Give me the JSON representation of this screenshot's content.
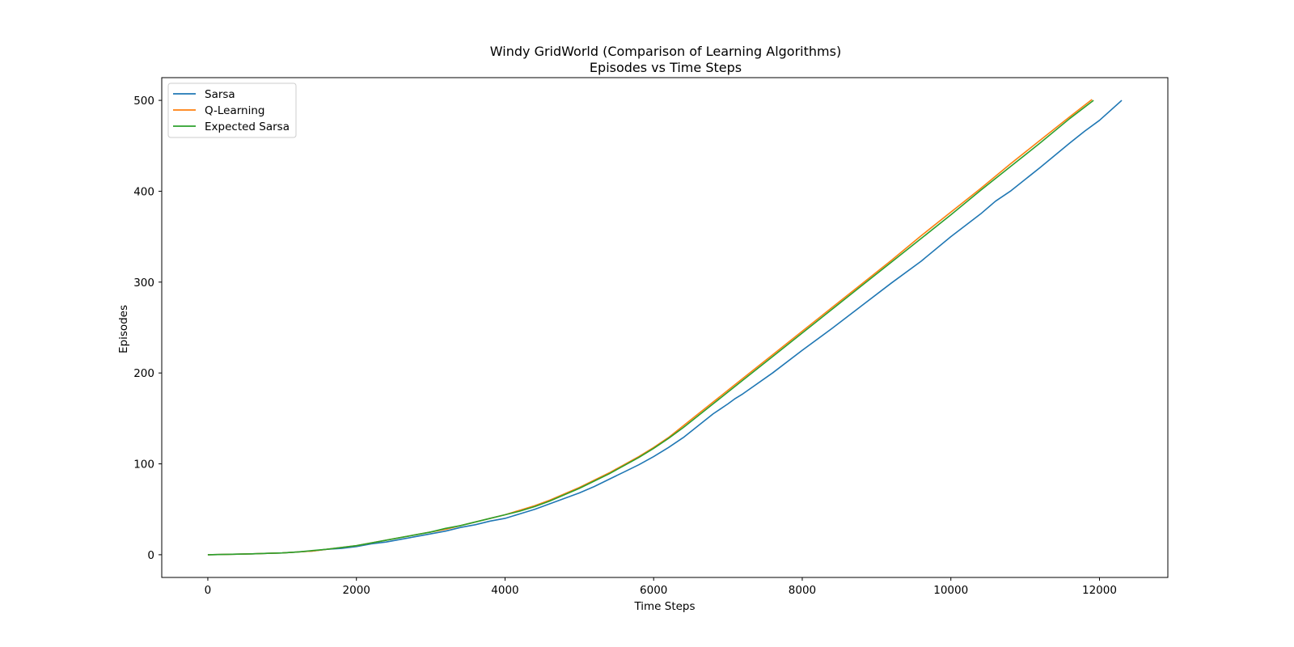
{
  "chart_data": {
    "type": "line",
    "title": "Windy GridWorld (Comparison of Learning Algorithms)",
    "subtitle": "Episodes vs Time Steps",
    "xlabel": "Time Steps",
    "ylabel": "Episodes",
    "xlim": [
      -620,
      12920
    ],
    "ylim": [
      -25,
      525
    ],
    "xticks": [
      0,
      2000,
      4000,
      6000,
      8000,
      10000,
      12000
    ],
    "yticks": [
      0,
      100,
      200,
      300,
      400,
      500
    ],
    "grid": false,
    "legend_position": "top-left",
    "series": [
      {
        "name": "Sarsa",
        "color": "#1f77b4",
        "x": [
          0,
          200,
          400,
          600,
          800,
          1000,
          1200,
          1400,
          1600,
          1800,
          2000,
          2200,
          2400,
          2600,
          2800,
          3000,
          3200,
          3400,
          3600,
          3800,
          4000,
          4200,
          4400,
          4600,
          4800,
          5000,
          5200,
          5400,
          5600,
          5800,
          6000,
          6200,
          6400,
          6600,
          6800,
          7000,
          7100,
          7200,
          7600,
          8000,
          8400,
          8800,
          9200,
          9600,
          10000,
          10400,
          10600,
          10800,
          11200,
          11600,
          11800,
          12000,
          12300
        ],
        "y": [
          0,
          0.3,
          0.6,
          1,
          1.5,
          2,
          3,
          4,
          6,
          7,
          9,
          12,
          14,
          17,
          20,
          23,
          26,
          30,
          33,
          37,
          40,
          45,
          50,
          56,
          62,
          68,
          75,
          83,
          91,
          99,
          108,
          118,
          129,
          142,
          155,
          166,
          172,
          177,
          200,
          225,
          249,
          274,
          299,
          323,
          350,
          375,
          389,
          400,
          426,
          453,
          466,
          478,
          500
        ]
      },
      {
        "name": "Q-Learning",
        "color": "#ff7f0e",
        "x": [
          0,
          200,
          400,
          600,
          800,
          1000,
          1200,
          1400,
          1600,
          1800,
          2000,
          2200,
          2400,
          2600,
          2800,
          3000,
          3200,
          3400,
          3600,
          3800,
          4000,
          4200,
          4400,
          4600,
          4800,
          5000,
          5200,
          5400,
          5600,
          5800,
          6000,
          6200,
          6400,
          6600,
          6800,
          7000,
          7200,
          7600,
          8000,
          8400,
          8800,
          9200,
          9600,
          10000,
          10400,
          10800,
          11200,
          11600,
          11900
        ],
        "y": [
          0,
          0.3,
          0.6,
          1,
          1.5,
          2,
          3,
          4,
          6,
          8,
          10,
          13,
          16,
          19,
          22,
          25,
          28,
          32,
          36,
          40,
          44,
          49,
          54,
          60,
          67,
          74,
          82,
          90,
          99,
          108,
          118,
          129,
          142,
          155,
          168,
          181,
          194,
          220,
          246,
          272,
          298,
          324,
          351,
          377,
          403,
          430,
          456,
          482,
          501
        ]
      },
      {
        "name": "Expected Sarsa",
        "color": "#2ca02c",
        "x": [
          0,
          200,
          400,
          600,
          800,
          1000,
          1200,
          1400,
          1600,
          1800,
          2000,
          2200,
          2400,
          2600,
          2800,
          3000,
          3200,
          3400,
          3600,
          3800,
          4000,
          4200,
          4400,
          4600,
          4800,
          5000,
          5200,
          5400,
          5600,
          5800,
          6000,
          6200,
          6400,
          6600,
          6800,
          7000,
          7200,
          7600,
          8000,
          8400,
          8800,
          9200,
          9600,
          10000,
          10400,
          10800,
          11200,
          11600,
          11920
        ],
        "y": [
          0,
          0.3,
          0.6,
          1,
          1.5,
          2,
          3,
          4.5,
          6,
          8,
          10,
          13,
          16,
          19,
          22,
          25,
          29,
          32,
          36,
          40,
          44,
          48,
          53,
          59,
          66,
          73,
          81,
          89,
          98,
          107,
          117,
          128,
          140,
          153,
          166,
          179,
          192,
          218,
          244,
          270,
          296,
          322,
          348,
          374,
          401,
          427,
          453,
          480,
          500
        ]
      }
    ]
  }
}
